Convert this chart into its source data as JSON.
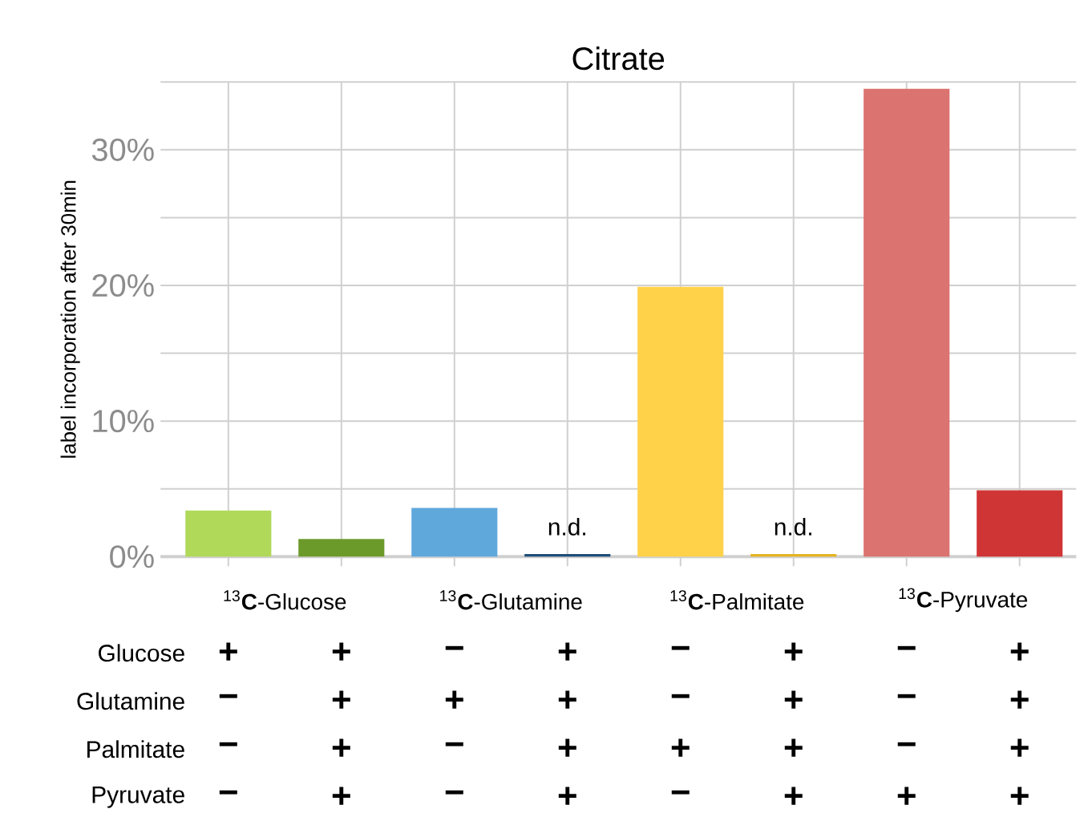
{
  "chart_data": {
    "type": "bar",
    "title": "Citrate",
    "ylabel": "label incorporation after 30min",
    "categories": [
      null,
      null,
      null,
      null,
      null,
      null,
      null,
      null
    ],
    "values": [
      3.4,
      1.3,
      3.6,
      0.2,
      19.9,
      0.2,
      34.5,
      4.9
    ],
    "colors": [
      "#b0d95a",
      "#6b9a2a",
      "#5fa8dc",
      "#1f4e79",
      "#ffd24a",
      "#e6b422",
      "#db7370",
      "#d03535"
    ],
    "value_labels": [
      null,
      null,
      null,
      "n.d.",
      null,
      "n.d.",
      null,
      null
    ],
    "ylim": [
      0,
      35
    ],
    "yticks": [
      {
        "value": 0,
        "label": "0%"
      },
      {
        "value": 5,
        "label": null
      },
      {
        "value": 10,
        "label": "10%"
      },
      {
        "value": 15,
        "label": null
      },
      {
        "value": 20,
        "label": "20%"
      },
      {
        "value": 25,
        "label": null
      },
      {
        "value": 30,
        "label": "30%"
      },
      {
        "value": 35,
        "label": null
      }
    ],
    "grid": true,
    "annotations": [
      "$^{13}$**C**-Glucose",
      "$^{13}$**C**-Glutamine",
      "$^{13}$**C**-Palmitate",
      "$^{13}$**C**-Pyruvate",
      "Glucose",
      "Glutamine",
      "Palmitate",
      "Pyruvate",
      "+",
      "+",
      "−",
      "+",
      "−",
      "+",
      "−",
      "+",
      "−",
      "+",
      "+",
      "+",
      "−",
      "+",
      "−",
      "+",
      "−",
      "+",
      "−",
      "+",
      "+",
      "+",
      "−",
      "+",
      "−",
      "+",
      "−",
      "+",
      "−",
      "+",
      "+",
      "+"
    ]
  }
}
